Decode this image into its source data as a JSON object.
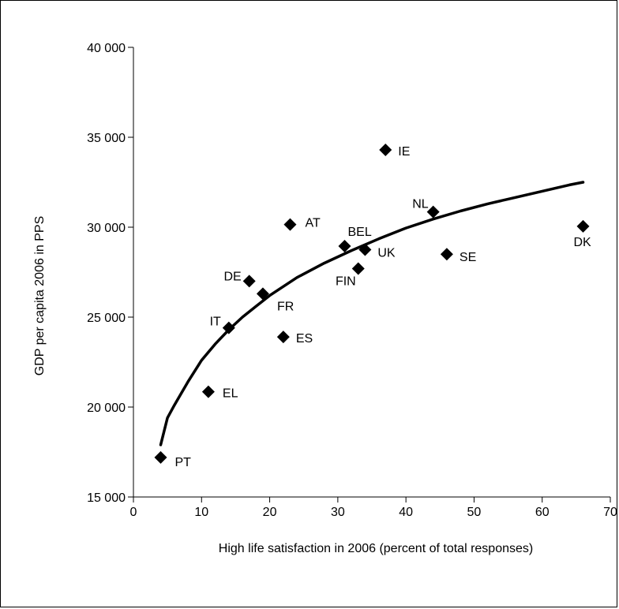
{
  "chart_data": {
    "type": "scatter",
    "title": "",
    "xlabel": "High life satisfaction in 2006 (percent of total responses)",
    "ylabel": "GDP per capita 2006 in PPS",
    "xlim": [
      0,
      70
    ],
    "ylim": [
      15000,
      40000
    ],
    "xticks": [
      {
        "value": 0,
        "label": "0"
      },
      {
        "value": 10,
        "label": "10"
      },
      {
        "value": 20,
        "label": "20"
      },
      {
        "value": 30,
        "label": "30"
      },
      {
        "value": 40,
        "label": "40"
      },
      {
        "value": 50,
        "label": "50"
      },
      {
        "value": 60,
        "label": "60"
      },
      {
        "value": 70,
        "label": "70"
      }
    ],
    "yticks": [
      {
        "value": 15000,
        "label": "15 000"
      },
      {
        "value": 20000,
        "label": "20 000"
      },
      {
        "value": 25000,
        "label": "25 000"
      },
      {
        "value": 30000,
        "label": "30 000"
      },
      {
        "value": 35000,
        "label": "35 000"
      },
      {
        "value": 40000,
        "label": "40 000"
      }
    ],
    "grid": false,
    "legend": "none",
    "marker": "diamond",
    "marker_color": "#000000",
    "points": [
      {
        "label": "PT",
        "x": 4,
        "y": 17200
      },
      {
        "label": "EL",
        "x": 11,
        "y": 20850
      },
      {
        "label": "IT",
        "x": 14,
        "y": 24400
      },
      {
        "label": "ES",
        "x": 22,
        "y": 23900
      },
      {
        "label": "DE",
        "x": 17,
        "y": 27000
      },
      {
        "label": "FR",
        "x": 19,
        "y": 26300
      },
      {
        "label": "AT",
        "x": 23,
        "y": 30150
      },
      {
        "label": "BEL",
        "x": 31,
        "y": 28950
      },
      {
        "label": "FIN",
        "x": 33,
        "y": 27700
      },
      {
        "label": "UK",
        "x": 34,
        "y": 28750
      },
      {
        "label": "IE",
        "x": 37,
        "y": 34300
      },
      {
        "label": "NL",
        "x": 44,
        "y": 30850
      },
      {
        "label": "SE",
        "x": 46,
        "y": 28500
      },
      {
        "label": "DK",
        "x": 66,
        "y": 30050
      }
    ],
    "trendline": {
      "type": "logarithmic",
      "color": "#000000",
      "x": [
        4,
        5,
        6,
        8,
        10,
        12,
        14,
        16,
        18,
        20,
        24,
        28,
        32,
        36,
        40,
        44,
        48,
        52,
        56,
        60,
        64,
        66
      ],
      "y": [
        17900,
        19400,
        20100,
        21400,
        22600,
        23500,
        24300,
        25000,
        25600,
        26200,
        27200,
        28000,
        28700,
        29350,
        29950,
        30450,
        30900,
        31300,
        31650,
        32000,
        32350,
        32500
      ]
    }
  }
}
